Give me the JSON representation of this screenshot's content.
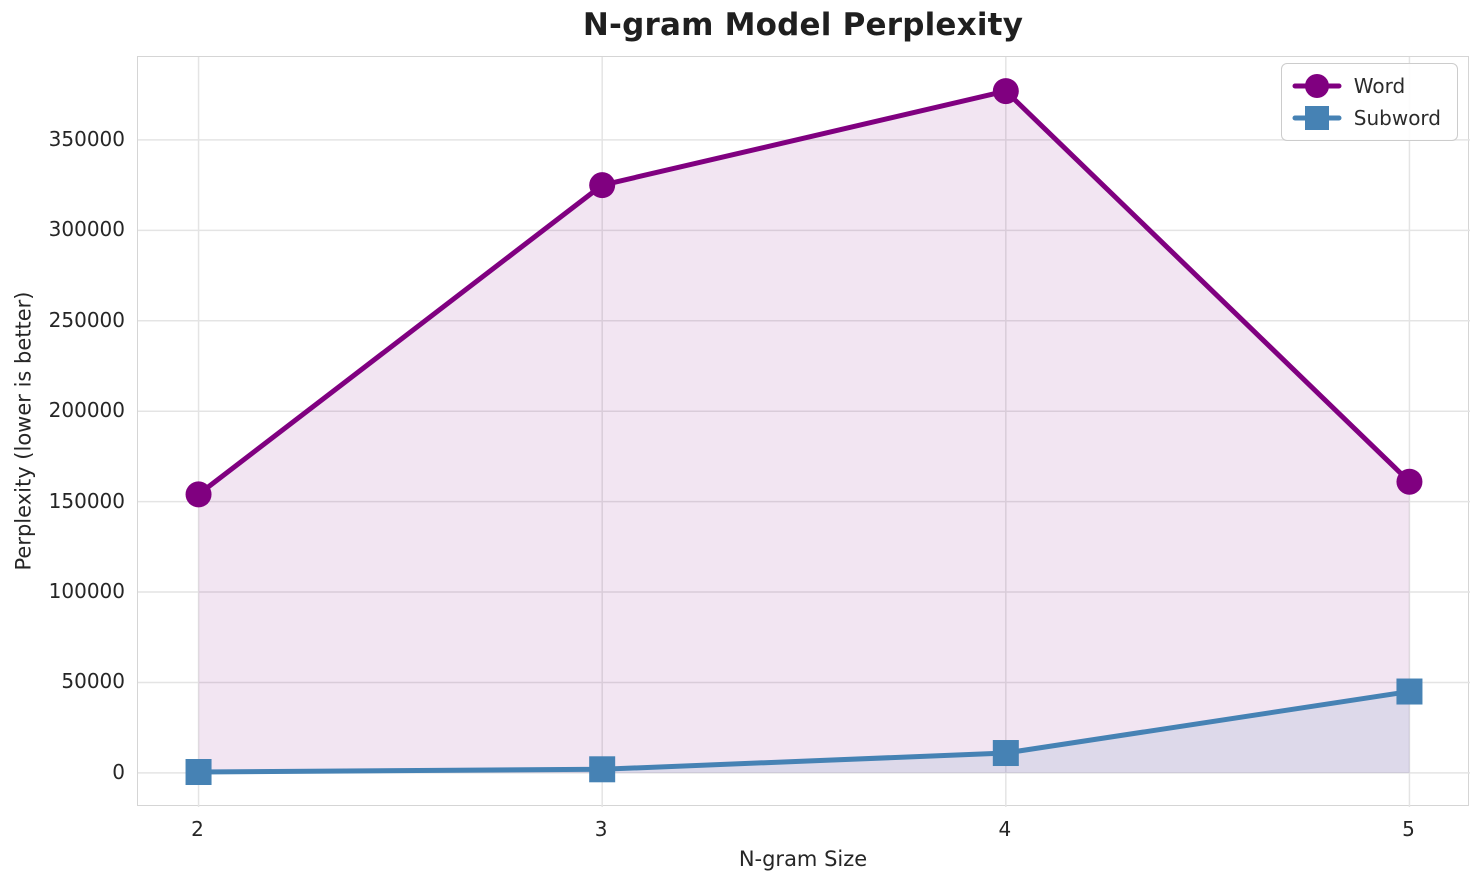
{
  "chart_data": {
    "type": "line",
    "title": "N-gram Model Perplexity",
    "xlabel": "N-gram Size",
    "ylabel": "Perplexity (lower is better)",
    "x": [
      2,
      3,
      4,
      5
    ],
    "series": [
      {
        "name": "Word",
        "marker": "circle",
        "color": "#800080",
        "fill_opacity": 0.1,
        "values": [
          154000,
          325000,
          377000,
          161000
        ]
      },
      {
        "name": "Subword",
        "marker": "square",
        "color": "#4682b4",
        "fill_opacity": 0.12,
        "values": [
          500,
          2000,
          11000,
          45000
        ]
      }
    ],
    "x_ticks": [
      2,
      3,
      4,
      5
    ],
    "y_ticks": [
      0,
      50000,
      100000,
      150000,
      200000,
      250000,
      300000,
      350000
    ],
    "xlim": [
      1.85,
      5.15
    ],
    "ylim": [
      -18850,
      395850
    ],
    "grid": true,
    "area_fill_to_zero": true,
    "legend_position": "upper right"
  },
  "style": {
    "grid_color": "#e4e4e4",
    "spine_color": "#d5d5d5",
    "text_color": "#262626",
    "background": "#ffffff",
    "line_width": 5,
    "marker_radius": 13
  }
}
